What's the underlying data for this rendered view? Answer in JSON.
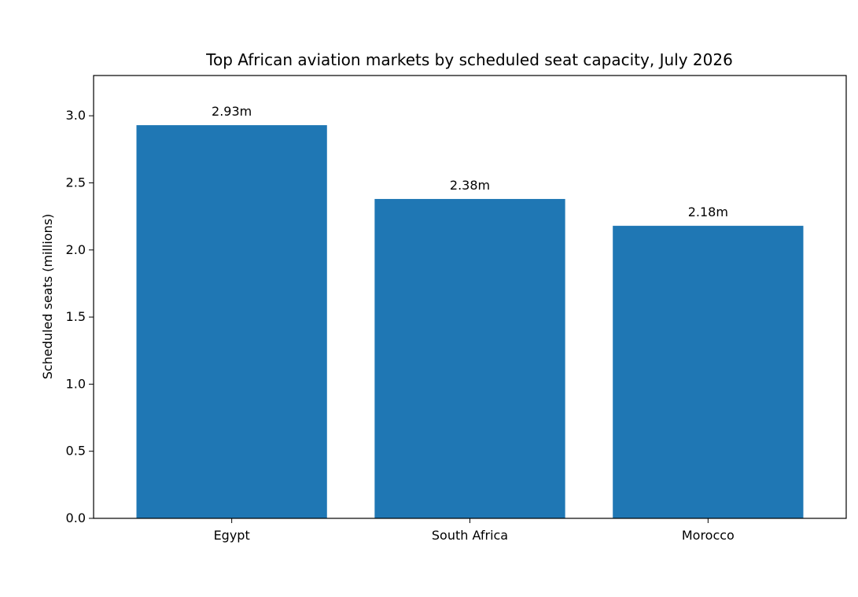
{
  "chart_data": {
    "type": "bar",
    "title": "Top African aviation markets by scheduled seat capacity, July 2026",
    "xlabel": "",
    "ylabel": "Scheduled seats (millions)",
    "categories": [
      "Egypt",
      "South Africa",
      "Morocco"
    ],
    "values": [
      2.93,
      2.38,
      2.18
    ],
    "data_labels": [
      "2.93m",
      "2.38m",
      "2.18m"
    ],
    "ylim": [
      0,
      3.3
    ],
    "yticks": [
      0.0,
      0.5,
      1.0,
      1.5,
      2.0,
      2.5,
      3.0
    ],
    "ytick_labels": [
      "0.0",
      "0.5",
      "1.0",
      "1.5",
      "2.0",
      "2.5",
      "3.0"
    ],
    "bar_color": "#1f77b4",
    "grid": false,
    "legend": "none"
  }
}
